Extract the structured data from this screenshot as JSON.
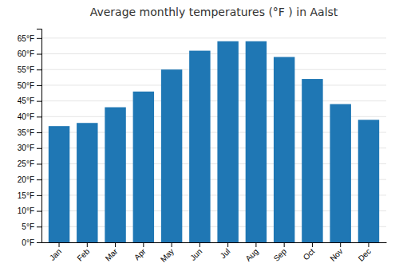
{
  "chart_data": {
    "type": "bar",
    "title": "Average monthly temperatures (°F ) in Aalst",
    "categories": [
      "Jan",
      "Feb",
      "Mar",
      "Apr",
      "May",
      "Jun",
      "Jul",
      "Aug",
      "Sep",
      "Oct",
      "Nov",
      "Dec"
    ],
    "values": [
      37,
      38,
      43,
      48,
      55,
      61,
      64,
      64,
      59,
      52,
      44,
      39
    ],
    "ylim": [
      0,
      68
    ],
    "yticks": [
      {
        "value": 0,
        "label": "0°F"
      },
      {
        "value": 5,
        "label": "5°F"
      },
      {
        "value": 10,
        "label": "10°F"
      },
      {
        "value": 15,
        "label": "15°F"
      },
      {
        "value": 20,
        "label": "20°F"
      },
      {
        "value": 25,
        "label": "25°F"
      },
      {
        "value": 30,
        "label": "30°F"
      },
      {
        "value": 35,
        "label": "35°F"
      },
      {
        "value": 40,
        "label": "40°F"
      },
      {
        "value": 45,
        "label": "45°F"
      },
      {
        "value": 50,
        "label": "50°F"
      },
      {
        "value": 55,
        "label": "55°F"
      },
      {
        "value": 60,
        "label": "60°F"
      },
      {
        "value": 65,
        "label": "65°F"
      }
    ],
    "grid": true
  }
}
